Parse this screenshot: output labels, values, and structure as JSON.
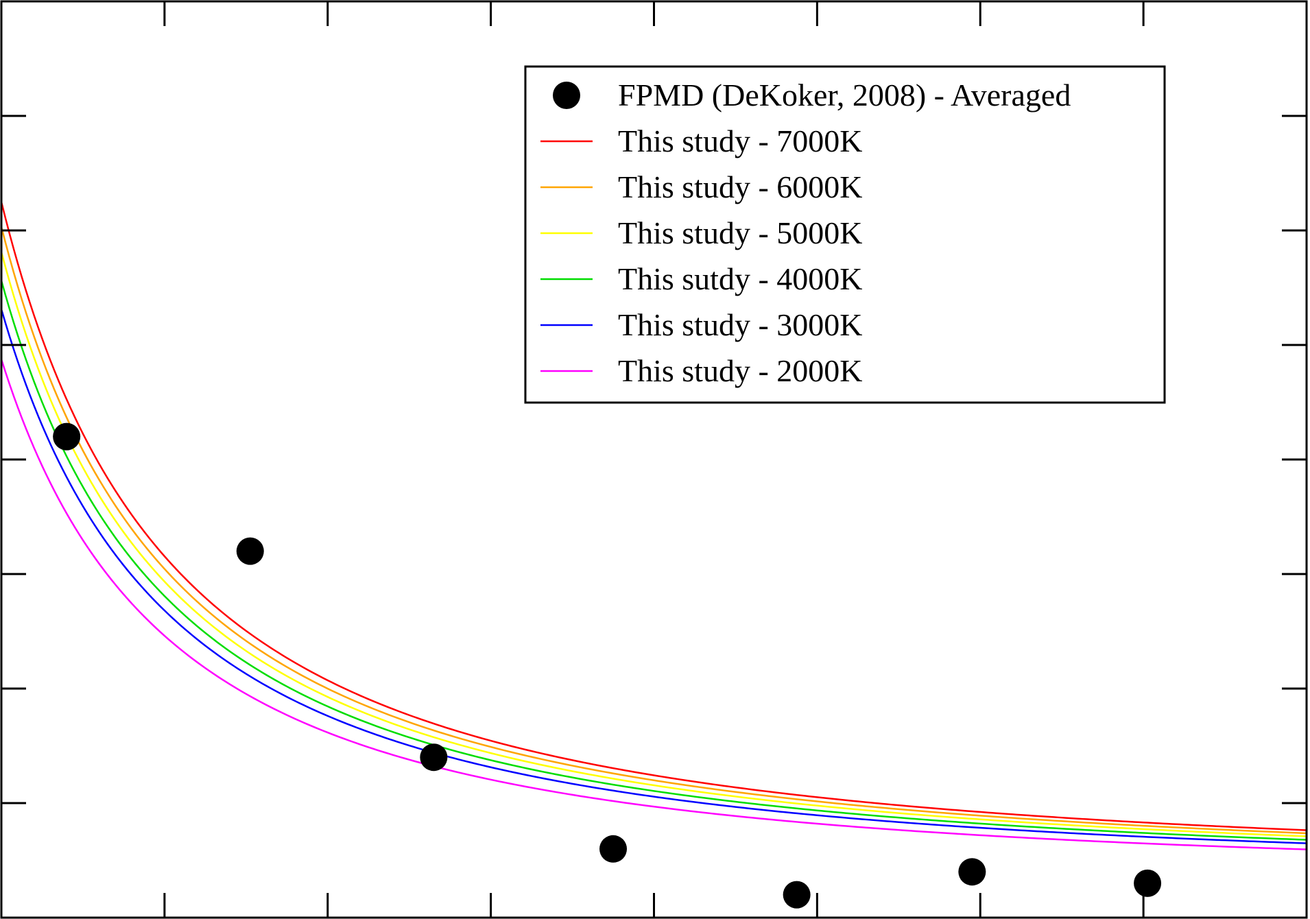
{
  "chart_data": {
    "type": "scatter",
    "xlim": [
      0,
      16
    ],
    "ylim": [
      0,
      8
    ],
    "grid": false,
    "legend_position": "top-right",
    "ticks": {
      "x_major": [
        2,
        4,
        6,
        8,
        10,
        12,
        14
      ],
      "y_major": [
        1,
        2,
        3,
        4,
        5,
        6,
        7
      ]
    },
    "points_series": {
      "name": "FPMD (DeKoker, 2008) - Averaged",
      "color": "#000000",
      "x": [
        0.8,
        3.05,
        5.3,
        7.5,
        9.75,
        11.9,
        14.05
      ],
      "y": [
        4.2,
        3.2,
        1.4,
        0.6,
        0.2,
        0.4,
        0.3
      ]
    },
    "series": [
      {
        "name": "This study - 7000K",
        "color": "#ff0000",
        "scale": 1.0,
        "x": [
          0,
          1,
          2,
          3,
          4,
          5,
          6,
          7,
          8,
          9,
          10,
          11,
          12,
          13,
          14,
          15,
          16
        ],
        "y": [
          6.25,
          4.55,
          3.52,
          2.86,
          2.41,
          2.09,
          1.85,
          1.66,
          1.51,
          1.39,
          1.29,
          1.21,
          1.14,
          1.08,
          1.03,
          0.98,
          0.94
        ]
      },
      {
        "name": "This study - 6000K",
        "color": "#ffa500",
        "scale": 0.965,
        "x": [
          0,
          1,
          2,
          3,
          4,
          5,
          6,
          7,
          8,
          9,
          10,
          11,
          12,
          13,
          14,
          15,
          16
        ],
        "y": [
          6.03,
          4.39,
          3.4,
          2.76,
          2.33,
          2.02,
          1.79,
          1.6,
          1.46,
          1.34,
          1.24,
          1.17,
          1.1,
          1.04,
          0.99,
          0.95,
          0.91
        ]
      },
      {
        "name": "This study - 5000K",
        "color": "#ffff00",
        "scale": 0.93,
        "x": [
          0,
          1,
          2,
          3,
          4,
          5,
          6,
          7,
          8,
          9,
          10,
          11,
          12,
          13,
          14,
          15,
          16
        ],
        "y": [
          5.81,
          4.23,
          3.27,
          2.66,
          2.24,
          1.94,
          1.72,
          1.54,
          1.4,
          1.29,
          1.2,
          1.13,
          1.06,
          1.0,
          0.96,
          0.91,
          0.87
        ]
      },
      {
        "name": "This sutdy - 4000K",
        "color": "#00dd00",
        "scale": 0.89,
        "x": [
          0,
          1,
          2,
          3,
          4,
          5,
          6,
          7,
          8,
          9,
          10,
          11,
          12,
          13,
          14,
          15,
          16
        ],
        "y": [
          5.56,
          4.05,
          3.13,
          2.55,
          2.14,
          1.86,
          1.65,
          1.48,
          1.34,
          1.24,
          1.15,
          1.08,
          1.01,
          0.96,
          0.92,
          0.87,
          0.84
        ]
      },
      {
        "name": "This study - 3000K",
        "color": "#0000ff",
        "scale": 0.85,
        "x": [
          0,
          1,
          2,
          3,
          4,
          5,
          6,
          7,
          8,
          9,
          10,
          11,
          12,
          13,
          14,
          15,
          16
        ],
        "y": [
          5.31,
          3.87,
          2.99,
          2.43,
          2.05,
          1.78,
          1.57,
          1.41,
          1.28,
          1.18,
          1.1,
          1.03,
          0.97,
          0.92,
          0.88,
          0.83,
          0.8
        ]
      },
      {
        "name": "This study - 2000K",
        "color": "#ff00ff",
        "scale": 0.78,
        "x": [
          0,
          1,
          2,
          3,
          4,
          5,
          6,
          7,
          8,
          9,
          10,
          11,
          12,
          13,
          14,
          15,
          16
        ],
        "y": [
          4.87,
          3.55,
          2.75,
          2.23,
          1.88,
          1.63,
          1.44,
          1.29,
          1.18,
          1.08,
          1.01,
          0.94,
          0.89,
          0.84,
          0.8,
          0.76,
          0.73
        ]
      }
    ]
  }
}
